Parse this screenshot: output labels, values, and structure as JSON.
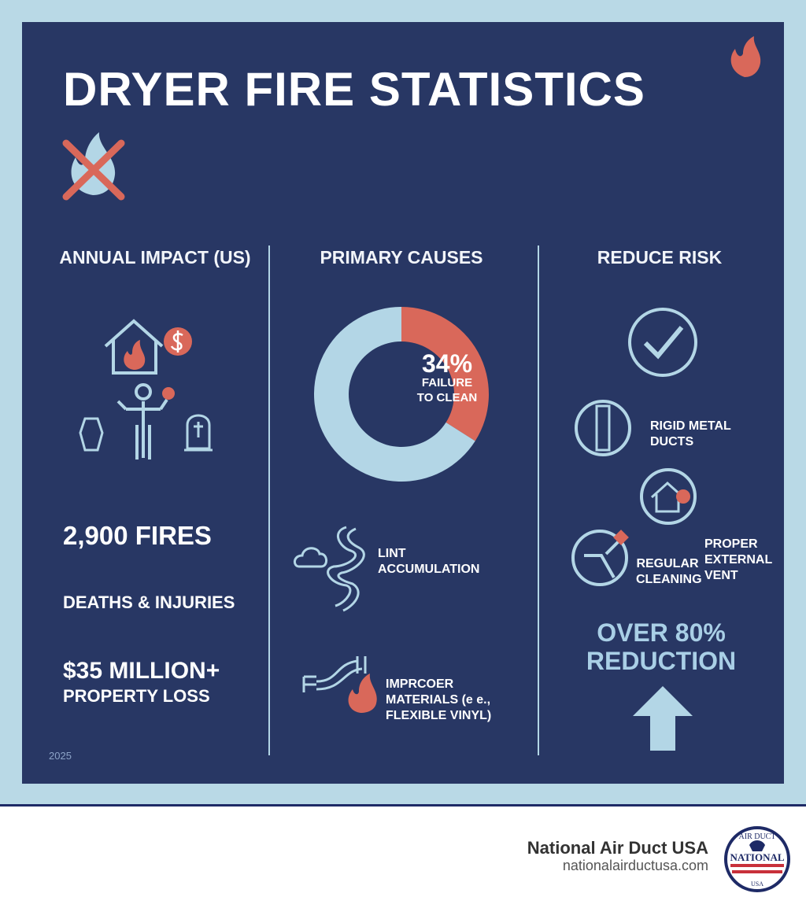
{
  "header": {
    "title": "DRYER FIRE STATISTICS"
  },
  "annual_impact": {
    "heading": "ANNUAL IMPACT (US)",
    "stats": [
      "2,900 FIRES",
      "DEATHS & INJURIES",
      "$35 MILLION+",
      "PROPERTY LOSS"
    ],
    "year": "2025"
  },
  "chart_data": {
    "type": "pie",
    "title": "PRIMARY CAUSES",
    "categories": [
      "FAILURE TO CLEAN",
      null
    ],
    "values": [
      34,
      66
    ],
    "value_labels": [
      "34%",
      null
    ],
    "colors": [
      "#d9685a",
      "#b3d6e6"
    ]
  },
  "causes": [
    "LINT ACCUMULATION",
    "IMPRCOER MATERIALS (e e., FLEXIBLE VINYL)"
  ],
  "reduce_risk": {
    "heading": "REDUCE RISK",
    "items": [
      "RIGID METAL DUCTS",
      "REGULAR CLEANING",
      "PROPER EXTERNAL VENT"
    ],
    "result": "OVER 80% REDUCTION"
  },
  "footer": {
    "company": "National Air Duct USA",
    "website": "nationalairductusa.com",
    "logo": {
      "top": "AIR DUCT",
      "middle": "NATIONAL",
      "bottom": "USA"
    }
  }
}
